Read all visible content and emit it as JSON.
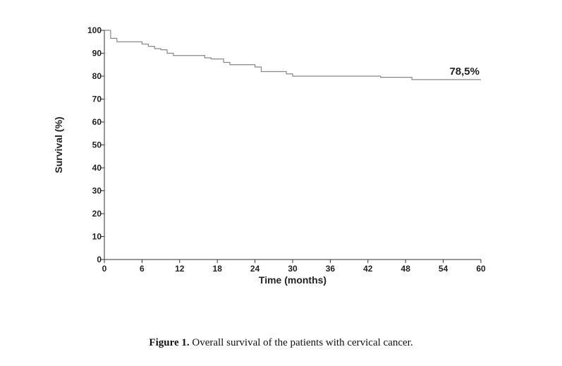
{
  "chart_data": {
    "type": "line",
    "step": true,
    "xlabel": "Time (months)",
    "ylabel": "Survival (%)",
    "xlim": [
      0,
      60
    ],
    "ylim": [
      0,
      100
    ],
    "xticks": [
      0,
      6,
      12,
      18,
      24,
      30,
      36,
      42,
      48,
      54,
      60
    ],
    "yticks": [
      0,
      10,
      20,
      30,
      40,
      50,
      60,
      70,
      80,
      90,
      100
    ],
    "grid": false,
    "line_color": "#888888",
    "series": [
      {
        "x": [
          0,
          1,
          2,
          6,
          7,
          8,
          9,
          10,
          11,
          16,
          17,
          19,
          20,
          24,
          25,
          29,
          30,
          44,
          49,
          60
        ],
        "y": [
          100,
          96.5,
          95,
          94,
          93,
          92,
          91.5,
          90,
          89,
          88,
          87.5,
          86,
          85,
          84,
          82,
          81,
          80,
          79.5,
          78.5,
          78.5
        ]
      }
    ],
    "annotations": [
      {
        "text": "78,5%",
        "x": 60,
        "y": 78.5
      }
    ]
  },
  "caption": {
    "label": "Figure 1.",
    "text": " Overall survival of the patients with cervical cancer."
  }
}
